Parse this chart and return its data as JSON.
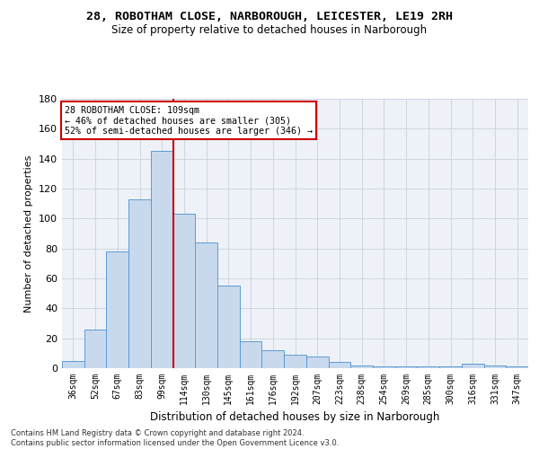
{
  "title_line1": "28, ROBOTHAM CLOSE, NARBOROUGH, LEICESTER, LE19 2RH",
  "title_line2": "Size of property relative to detached houses in Narborough",
  "xlabel": "Distribution of detached houses by size in Narborough",
  "ylabel": "Number of detached properties",
  "bar_labels": [
    "36sqm",
    "52sqm",
    "67sqm",
    "83sqm",
    "99sqm",
    "114sqm",
    "130sqm",
    "145sqm",
    "161sqm",
    "176sqm",
    "192sqm",
    "207sqm",
    "223sqm",
    "238sqm",
    "254sqm",
    "269sqm",
    "285sqm",
    "300sqm",
    "316sqm",
    "331sqm",
    "347sqm"
  ],
  "bar_values": [
    5,
    26,
    78,
    113,
    145,
    103,
    84,
    55,
    18,
    12,
    9,
    8,
    4,
    2,
    1,
    1,
    1,
    1,
    3,
    2,
    1
  ],
  "bar_color": "#c9d9ed",
  "bar_edge_color": "#5b9bd5",
  "vline_index": 4.5,
  "vline_color": "#cc0000",
  "annotation_line1": "28 ROBOTHAM CLOSE: 109sqm",
  "annotation_line2": "← 46% of detached houses are smaller (305)",
  "annotation_line3": "52% of semi-detached houses are larger (346) →",
  "annotation_box_color": "#ffffff",
  "annotation_box_edge_color": "#cc0000",
  "ylim": [
    0,
    180
  ],
  "yticks": [
    0,
    20,
    40,
    60,
    80,
    100,
    120,
    140,
    160,
    180
  ],
  "grid_color": "#c8d0dc",
  "bg_color": "#eef2f8",
  "footer_line1": "Contains HM Land Registry data © Crown copyright and database right 2024.",
  "footer_line2": "Contains public sector information licensed under the Open Government Licence v3.0.",
  "title1_fontsize": 9.5,
  "title2_fontsize": 8.5
}
